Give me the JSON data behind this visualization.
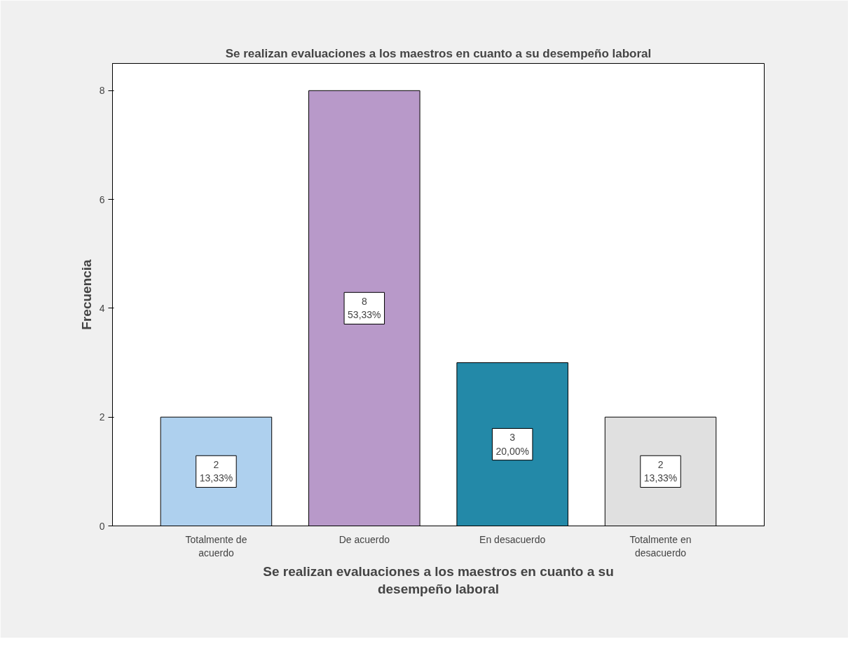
{
  "chart_data": {
    "type": "bar",
    "title": "Se realizan evaluaciones a los maestros en cuanto a su desempeño laboral",
    "xlabel": "Se realizan evaluaciones a los maestros en cuanto a su desempeño laboral",
    "ylabel": "Frecuencia",
    "categories": [
      "Totalmente de acuerdo",
      "De acuerdo",
      "En desacuerdo",
      "Totalmente en desacuerdo"
    ],
    "values": [
      2,
      8,
      3,
      2
    ],
    "colors": [
      "#aed0ee",
      "#b899c9",
      "#2389a8",
      "#e0e0e0"
    ],
    "value_labels": [
      "2\n13,33%",
      "8\n53,33%",
      "3\n20,00%",
      "2\n13,33%"
    ],
    "ylim": [
      0,
      8.5
    ],
    "yticks": [
      0,
      2,
      4,
      6,
      8
    ],
    "grid": false
  }
}
